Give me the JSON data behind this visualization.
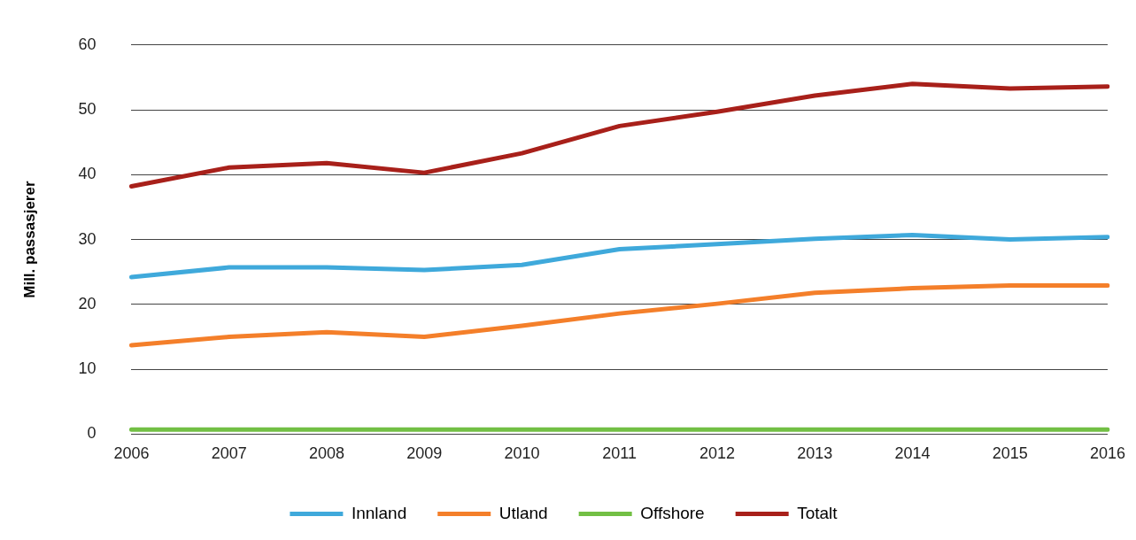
{
  "chart_data": {
    "type": "line",
    "ylabel": "Mill. passasjerer",
    "categories": [
      "2006",
      "2007",
      "2008",
      "2009",
      "2010",
      "2011",
      "2012",
      "2013",
      "2014",
      "2015",
      "2016"
    ],
    "series": [
      {
        "name": "Innland",
        "color": "#3fa9db",
        "values": [
          24.2,
          25.7,
          25.7,
          25.3,
          26.1,
          28.5,
          29.3,
          30.1,
          30.7,
          30.0,
          30.4
        ]
      },
      {
        "name": "Utland",
        "color": "#f47f2a",
        "values": [
          13.7,
          15.0,
          15.7,
          15.0,
          16.7,
          18.6,
          20.1,
          21.8,
          22.5,
          22.9,
          22.9
        ]
      },
      {
        "name": "Offshore",
        "color": "#72bf44",
        "values": [
          0.7,
          0.7,
          0.7,
          0.7,
          0.7,
          0.7,
          0.7,
          0.7,
          0.7,
          0.7,
          0.7
        ]
      },
      {
        "name": "Totalt",
        "color": "#a8201a",
        "values": [
          38.2,
          41.1,
          41.8,
          40.3,
          43.3,
          47.5,
          49.7,
          52.2,
          54.0,
          53.3,
          53.6
        ]
      }
    ],
    "ylim": [
      0,
      60
    ],
    "yticks": [
      0,
      10,
      20,
      30,
      40,
      50,
      60
    ],
    "grid": "y",
    "legend": "bottom",
    "marker": "none",
    "line_style": "solid"
  }
}
